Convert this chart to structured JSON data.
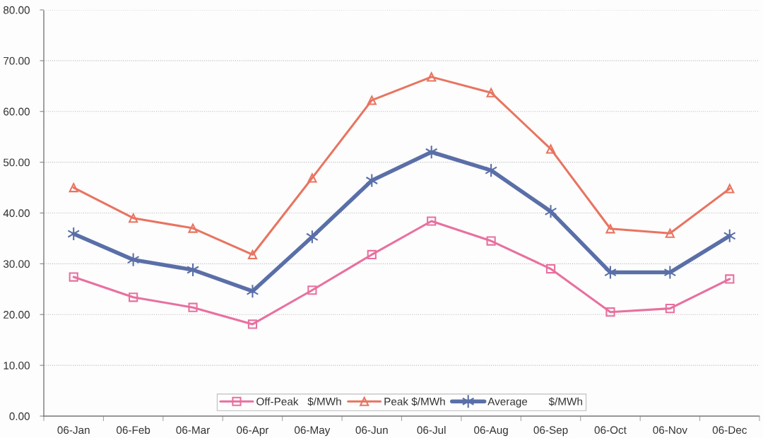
{
  "chart_data": {
    "type": "line",
    "categories": [
      "06-Jan",
      "06-Feb",
      "06-Mar",
      "06-Apr",
      "06-May",
      "06-Jun",
      "06-Jul",
      "06-Aug",
      "06-Sep",
      "06-Oct",
      "06-Nov",
      "06-Dec"
    ],
    "series": [
      {
        "name": "Off-Peak   $/MWh",
        "color": "#e8709f",
        "marker": "square",
        "values": [
          27.4,
          23.4,
          21.4,
          18.1,
          24.8,
          31.8,
          38.4,
          34.5,
          29.0,
          20.5,
          21.2,
          27.0
        ]
      },
      {
        "name": "Peak $/MWh",
        "color": "#e87461",
        "marker": "triangle",
        "values": [
          45.0,
          39.0,
          37.0,
          31.8,
          46.9,
          62.2,
          66.8,
          63.7,
          52.6,
          36.9,
          36.0,
          44.8
        ]
      },
      {
        "name": "Average       $/MWh",
        "color": "#5a6fa8",
        "marker": "cross",
        "values": [
          35.9,
          30.8,
          28.8,
          24.6,
          35.3,
          46.4,
          52.0,
          48.4,
          40.3,
          28.3,
          28.3,
          35.5
        ]
      }
    ],
    "ylim": [
      0,
      80
    ],
    "yticks": [
      {
        "value": 0,
        "label": "0.00"
      },
      {
        "value": 10,
        "label": "10.00"
      },
      {
        "value": 20,
        "label": "20.00"
      },
      {
        "value": 30,
        "label": "30.00"
      },
      {
        "value": 40,
        "label": "40.00"
      },
      {
        "value": 50,
        "label": "50.00"
      },
      {
        "value": 60,
        "label": "60.00"
      },
      {
        "value": 70,
        "label": "70.00"
      },
      {
        "value": 80,
        "label": "80.00"
      }
    ],
    "grid": "y",
    "legend": "bottom",
    "line_style": "solid"
  }
}
